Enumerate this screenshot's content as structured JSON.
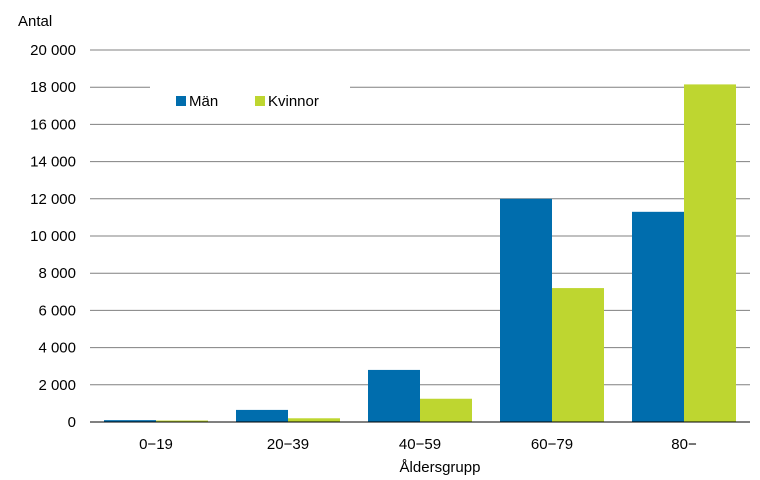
{
  "chart_data": {
    "type": "bar",
    "ylabel": "Antal",
    "xlabel": "Åldersgrupp",
    "categories": [
      "0−19",
      "20−39",
      "40−59",
      "60−79",
      "80−"
    ],
    "series": [
      {
        "name": "Män",
        "color": "#006dad",
        "values": [
          100,
          650,
          2800,
          12000,
          11300
        ]
      },
      {
        "name": "Kvinnor",
        "color": "#bed630",
        "values": [
          80,
          200,
          1250,
          7200,
          18150
        ]
      }
    ],
    "ylim": [
      0,
      20000
    ],
    "yticks": [
      0,
      2000,
      4000,
      6000,
      8000,
      10000,
      12000,
      14000,
      16000,
      18000,
      20000
    ],
    "ytick_labels": [
      "0",
      "2 000",
      "4 000",
      "6 000",
      "8 000",
      "10 000",
      "12 000",
      "14 000",
      "16 000",
      "18 000",
      "20 000"
    ],
    "grid": true,
    "legend_position": "top-left",
    "colors": {
      "grid": "#808080",
      "axis": "#000000"
    }
  }
}
